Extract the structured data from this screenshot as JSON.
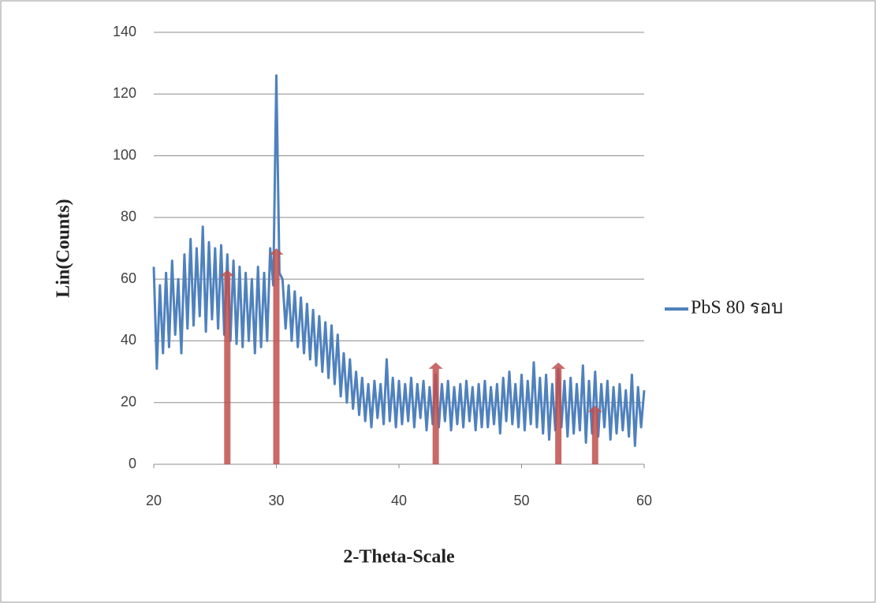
{
  "chart_data": {
    "type": "line",
    "x_label": "2-Theta-Scale",
    "y_label": "Lin(Counts)",
    "xlim": [
      20,
      60
    ],
    "xticks": [
      20,
      30,
      40,
      50,
      60
    ],
    "ylim": [
      0,
      140
    ],
    "yticks": [
      0,
      20,
      40,
      60,
      80,
      100,
      120,
      140
    ],
    "grid": true,
    "legend": "right",
    "x": [
      20,
      20.25,
      20.5,
      20.75,
      21,
      21.25,
      21.5,
      21.75,
      22,
      22.25,
      22.5,
      22.75,
      23,
      23.25,
      23.5,
      23.75,
      24,
      24.25,
      24.5,
      24.75,
      25,
      25.25,
      25.5,
      25.75,
      26,
      26.25,
      26.5,
      26.75,
      27,
      27.25,
      27.5,
      27.75,
      28,
      28.25,
      28.5,
      28.75,
      29,
      29.25,
      29.5,
      29.75,
      30,
      30.25,
      30.5,
      30.75,
      31,
      31.25,
      31.5,
      31.75,
      32,
      32.25,
      32.5,
      32.75,
      33,
      33.25,
      33.5,
      33.75,
      34,
      34.25,
      34.5,
      34.75,
      35,
      35.25,
      35.5,
      35.75,
      36,
      36.25,
      36.5,
      36.75,
      37,
      37.25,
      37.5,
      37.75,
      38,
      38.25,
      38.5,
      38.75,
      39,
      39.25,
      39.5,
      39.75,
      40,
      40.25,
      40.5,
      40.75,
      41,
      41.25,
      41.5,
      41.75,
      42,
      42.25,
      42.5,
      42.75,
      43,
      43.25,
      43.5,
      43.75,
      44,
      44.25,
      44.5,
      44.75,
      45,
      45.25,
      45.5,
      45.75,
      46,
      46.25,
      46.5,
      46.75,
      47,
      47.25,
      47.5,
      47.75,
      48,
      48.25,
      48.5,
      48.75,
      49,
      49.25,
      49.5,
      49.75,
      50,
      50.25,
      50.5,
      50.75,
      51,
      51.25,
      51.5,
      51.75,
      52,
      52.25,
      52.5,
      52.75,
      53,
      53.25,
      53.5,
      53.75,
      54,
      54.25,
      54.5,
      54.75,
      55,
      55.25,
      55.5,
      55.75,
      56,
      56.25,
      56.5,
      56.75,
      57,
      57.25,
      57.5,
      57.75,
      58,
      58.25,
      58.5,
      58.75,
      59,
      59.25,
      59.5,
      59.75,
      60
    ],
    "series": [
      {
        "name": "PbS 80 รอบ",
        "color": "#4f81bd",
        "values": [
          64,
          31,
          58,
          36,
          62,
          38,
          66,
          42,
          60,
          36,
          68,
          44,
          73,
          45,
          70,
          48,
          77,
          43,
          72,
          47,
          70,
          44,
          71,
          42,
          68,
          40,
          66,
          39,
          64,
          38,
          62,
          40,
          60,
          36,
          64,
          38,
          62,
          40,
          70,
          58,
          126,
          62,
          60,
          44,
          58,
          40,
          56,
          38,
          54,
          36,
          52,
          34,
          50,
          32,
          48,
          30,
          46,
          28,
          45,
          26,
          42,
          22,
          36,
          20,
          34,
          18,
          30,
          16,
          28,
          14,
          26,
          12,
          27,
          15,
          26,
          13,
          34,
          14,
          28,
          12,
          27,
          13,
          26,
          14,
          28,
          12,
          26,
          15,
          27,
          11,
          25,
          13,
          29,
          12,
          26,
          14,
          27,
          11,
          25,
          13,
          26,
          12,
          27,
          14,
          25,
          11,
          26,
          12,
          27,
          12,
          25,
          13,
          26,
          10,
          28,
          14,
          30,
          13,
          26,
          12,
          29,
          11,
          27,
          13,
          33,
          12,
          28,
          10,
          29,
          8,
          26,
          11,
          31,
          12,
          27,
          9,
          28,
          10,
          26,
          11,
          32,
          7,
          27,
          10,
          30,
          9,
          26,
          12,
          27,
          8,
          25,
          10,
          26,
          11,
          24,
          9,
          29,
          6,
          25,
          12,
          24
        ]
      }
    ],
    "markers": {
      "color": "#c0504d",
      "x": [
        26,
        30,
        43,
        53,
        56
      ],
      "values": [
        63,
        70,
        33,
        33,
        19
      ]
    }
  }
}
